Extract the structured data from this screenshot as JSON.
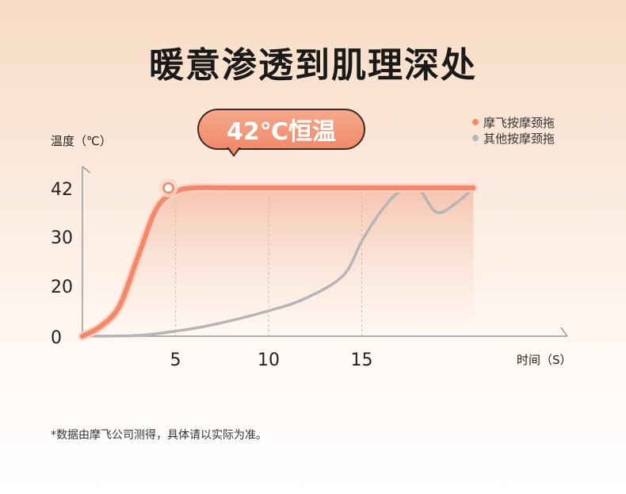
{
  "title": "暖意渗透到肌理深处",
  "callout": "42℃恒温",
  "footnote": "*数据由摩飞公司测得，具体请以实际为准。",
  "colors": {
    "series_a": "#f4886a",
    "series_b": "#b5b5b5",
    "axis": "#999999"
  },
  "chart_data": {
    "type": "line",
    "ylabel": "温度（℃）",
    "xlabel": "时间（S）",
    "y_ticks": [
      0,
      20,
      30,
      42
    ],
    "x_ticks": [
      5,
      10,
      15
    ],
    "series": [
      {
        "name": "摩飞按摩颈拖",
        "points": [
          [
            0,
            0
          ],
          [
            1,
            4
          ],
          [
            2,
            12
          ],
          [
            3,
            26
          ],
          [
            4,
            37
          ],
          [
            5,
            41
          ],
          [
            6,
            42
          ],
          [
            8,
            42
          ],
          [
            10,
            42
          ],
          [
            12,
            42
          ],
          [
            14,
            42
          ],
          [
            16,
            42
          ],
          [
            18,
            42
          ],
          [
            20,
            42
          ],
          [
            21,
            42
          ]
        ]
      },
      {
        "name": "其他按摩颈拖",
        "points": [
          [
            0,
            0
          ],
          [
            3,
            0.3
          ],
          [
            5,
            2
          ],
          [
            7,
            4.5
          ],
          [
            10,
            10
          ],
          [
            12,
            15
          ],
          [
            14,
            22
          ],
          [
            15,
            29
          ],
          [
            16,
            36
          ],
          [
            17,
            41
          ],
          [
            18,
            42
          ],
          [
            19,
            36
          ],
          [
            20,
            38
          ],
          [
            21,
            42
          ]
        ]
      }
    ]
  }
}
